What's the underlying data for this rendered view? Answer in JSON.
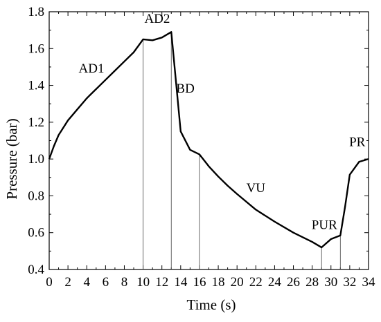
{
  "chart_data": {
    "type": "line",
    "xlabel": "Time (s)",
    "ylabel": "Pressure (bar)",
    "xlim": [
      0,
      34
    ],
    "ylim": [
      0.4,
      1.8
    ],
    "xticks": [
      0,
      2,
      4,
      6,
      8,
      10,
      12,
      14,
      16,
      18,
      20,
      22,
      24,
      26,
      28,
      30,
      32,
      34
    ],
    "yticks": [
      0.4,
      0.6,
      0.8,
      1.0,
      1.2,
      1.4,
      1.6,
      1.8
    ],
    "ytick_labels": [
      "0.4",
      "0.6",
      "0.8",
      "1.0",
      "1.2",
      "1.4",
      "1.6",
      "1.8"
    ],
    "grid": false,
    "series": [
      {
        "x": [
          0,
          0.5,
          1,
          1.5,
          2,
          3,
          4,
          5,
          6,
          7,
          8,
          9,
          10,
          11,
          12,
          13,
          13.5,
          14,
          15,
          16,
          17,
          18,
          19,
          20,
          22,
          24,
          26,
          28,
          29,
          30,
          31,
          31.5,
          32,
          33,
          34
        ],
        "y": [
          1.0,
          1.07,
          1.13,
          1.17,
          1.21,
          1.27,
          1.33,
          1.38,
          1.43,
          1.48,
          1.53,
          1.58,
          1.65,
          1.645,
          1.66,
          1.69,
          1.42,
          1.15,
          1.05,
          1.025,
          0.96,
          0.905,
          0.855,
          0.81,
          0.725,
          0.66,
          0.6,
          0.55,
          0.52,
          0.565,
          0.585,
          0.74,
          0.915,
          0.985,
          1.0
        ]
      }
    ],
    "vertical_lines": [
      10,
      13,
      16,
      29,
      31
    ],
    "annotations": [
      {
        "text": "AD1",
        "x": 4.5,
        "y": 1.47
      },
      {
        "text": "AD2",
        "x": 11.5,
        "y": 1.74
      },
      {
        "text": "BD",
        "x": 14.5,
        "y": 1.36
      },
      {
        "text": "VU",
        "x": 22,
        "y": 0.82
      },
      {
        "text": "PUR",
        "x": 29.3,
        "y": 0.62
      },
      {
        "text": "PR",
        "x": 32.8,
        "y": 1.07
      }
    ]
  }
}
